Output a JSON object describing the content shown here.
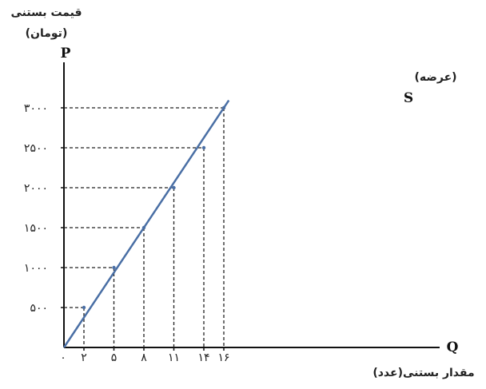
{
  "chart_data": {
    "type": "line",
    "y_title_line1": "قیمت بستنی",
    "y_title_line2": "(تومان)",
    "y_axis_letter": "P",
    "x_axis_letter": "Q",
    "x_title": "مقدار بستنی(عدد)",
    "origin_label": "۰",
    "series": [
      {
        "name": "S",
        "annotation": "(عرضه)",
        "color": "#4a6fa5",
        "points": [
          {
            "x": 0,
            "y": 0
          },
          {
            "x": 2,
            "y": 500
          },
          {
            "x": 5,
            "y": 1000
          },
          {
            "x": 8,
            "y": 1500
          },
          {
            "x": 11,
            "y": 2000
          },
          {
            "x": 14,
            "y": 2500
          },
          {
            "x": 16,
            "y": 3000
          }
        ]
      }
    ],
    "x_ticks": [
      {
        "value": 2,
        "label": "۲"
      },
      {
        "value": 5,
        "label": "۵"
      },
      {
        "value": 8,
        "label": "۸"
      },
      {
        "value": 11,
        "label": "۱۱"
      },
      {
        "value": 14,
        "label": "۱۴"
      },
      {
        "value": 16,
        "label": "۱۶"
      }
    ],
    "y_ticks": [
      {
        "value": 500,
        "label": "۵۰۰"
      },
      {
        "value": 1000,
        "label": "۱۰۰۰"
      },
      {
        "value": 1500,
        "label": "۱۵۰۰"
      },
      {
        "value": 2000,
        "label": "۲۰۰۰"
      },
      {
        "value": 2500,
        "label": "۲۵۰۰"
      },
      {
        "value": 3000,
        "label": "۳۰۰۰"
      }
    ],
    "grid": "dashed guide lines from each point to both axes"
  }
}
